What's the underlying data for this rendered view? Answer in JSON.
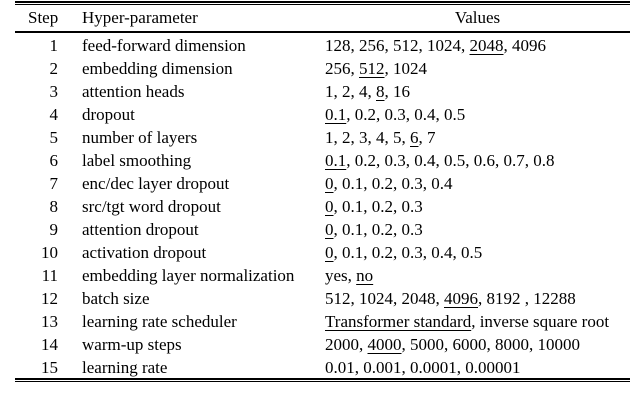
{
  "meta": {
    "text_color": "#000000",
    "background_color": "#ffffff",
    "underline_means": "selected value"
  },
  "table": {
    "headers": {
      "step": "Step",
      "param": "Hyper-parameter",
      "values": "Values"
    },
    "rows": [
      {
        "step": "1",
        "param": "feed-forward dimension",
        "values": [
          {
            "text": "128, 256, 512, 1024, "
          },
          {
            "text": "2048",
            "underline": true
          },
          {
            "text": ", 4096"
          }
        ]
      },
      {
        "step": "2",
        "param": "embedding dimension",
        "values": [
          {
            "text": "256, "
          },
          {
            "text": "512",
            "underline": true
          },
          {
            "text": ", 1024"
          }
        ]
      },
      {
        "step": "3",
        "param": "attention heads",
        "values": [
          {
            "text": "1, 2, 4, "
          },
          {
            "text": "8",
            "underline": true
          },
          {
            "text": ", 16"
          }
        ]
      },
      {
        "step": "4",
        "param": "dropout",
        "values": [
          {
            "text": "0.1",
            "underline": true
          },
          {
            "text": ", 0.2, 0.3, 0.4, 0.5"
          }
        ]
      },
      {
        "step": "5",
        "param": "number of layers",
        "values": [
          {
            "text": "1, 2, 3, 4, 5, "
          },
          {
            "text": "6",
            "underline": true
          },
          {
            "text": ", 7"
          }
        ]
      },
      {
        "step": "6",
        "param": "label smoothing",
        "values": [
          {
            "text": "0.1",
            "underline": true
          },
          {
            "text": ", 0.2, 0.3, 0.4, 0.5, 0.6, 0.7, 0.8"
          }
        ]
      },
      {
        "step": "7",
        "param": "enc/dec layer dropout",
        "values": [
          {
            "text": "0",
            "underline": true
          },
          {
            "text": ", 0.1, 0.2, 0.3, 0.4"
          }
        ]
      },
      {
        "step": "8",
        "param": "src/tgt word dropout",
        "values": [
          {
            "text": "0",
            "underline": true
          },
          {
            "text": ", 0.1, 0.2, 0.3"
          }
        ]
      },
      {
        "step": "9",
        "param": "attention dropout",
        "values": [
          {
            "text": "0",
            "underline": true
          },
          {
            "text": ", 0.1, 0.2, 0.3"
          }
        ]
      },
      {
        "step": "10",
        "param": "activation dropout",
        "values": [
          {
            "text": "0",
            "underline": true
          },
          {
            "text": ", 0.1, 0.2, 0.3, 0.4, 0.5"
          }
        ]
      },
      {
        "step": "11",
        "param": "embedding layer normalization",
        "values": [
          {
            "text": "yes, "
          },
          {
            "text": "no",
            "underline": true
          }
        ]
      },
      {
        "step": "12",
        "param": "batch size",
        "values": [
          {
            "text": "512, 1024, 2048, "
          },
          {
            "text": "4096",
            "underline": true
          },
          {
            "text": ", 8192 , 12288"
          }
        ]
      },
      {
        "step": "13",
        "param": "learning rate scheduler",
        "values": [
          {
            "text": "Transformer standard",
            "underline": true
          },
          {
            "text": ", inverse square root"
          }
        ]
      },
      {
        "step": "14",
        "param": "warm-up steps",
        "values": [
          {
            "text": "2000, "
          },
          {
            "text": "4000",
            "underline": true
          },
          {
            "text": ", 5000, 6000, 8000, 10000"
          }
        ]
      },
      {
        "step": "15",
        "param": "learning rate",
        "values": [
          {
            "text": "0.01, 0.001, 0.0001, 0.00001"
          }
        ]
      }
    ]
  }
}
